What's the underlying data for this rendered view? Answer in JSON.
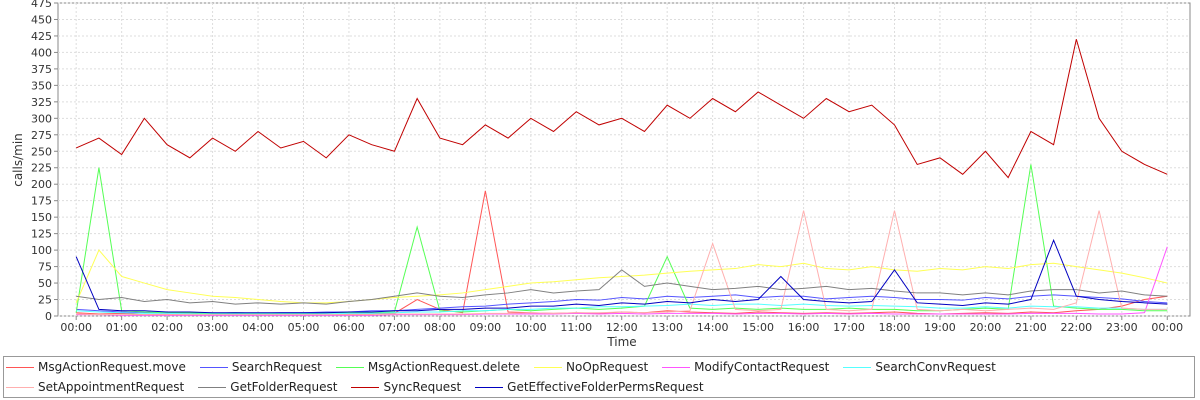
{
  "chart_data": {
    "type": "line",
    "x_label": "Time",
    "y_label": "calls/min",
    "xlim": [
      -0.4,
      24.5
    ],
    "ylim": [
      0,
      475
    ],
    "yticks": [
      0,
      25,
      50,
      75,
      100,
      125,
      150,
      175,
      200,
      225,
      250,
      275,
      300,
      325,
      350,
      375,
      400,
      425,
      450,
      475
    ],
    "xticks": [
      {
        "value": 0,
        "label": "00:00"
      },
      {
        "value": 1,
        "label": "01:00"
      },
      {
        "value": 2,
        "label": "02:00"
      },
      {
        "value": 3,
        "label": "03:00"
      },
      {
        "value": 4,
        "label": "04:00"
      },
      {
        "value": 5,
        "label": "05:00"
      },
      {
        "value": 6,
        "label": "06:00"
      },
      {
        "value": 7,
        "label": "07:00"
      },
      {
        "value": 8,
        "label": "08:00"
      },
      {
        "value": 9,
        "label": "09:00"
      },
      {
        "value": 10,
        "label": "10:00"
      },
      {
        "value": 11,
        "label": "11:00"
      },
      {
        "value": 12,
        "label": "12:00"
      },
      {
        "value": 13,
        "label": "13:00"
      },
      {
        "value": 14,
        "label": "14:00"
      },
      {
        "value": 15,
        "label": "15:00"
      },
      {
        "value": 16,
        "label": "16:00"
      },
      {
        "value": 17,
        "label": "17:00"
      },
      {
        "value": 18,
        "label": "18:00"
      },
      {
        "value": 19,
        "label": "19:00"
      },
      {
        "value": 20,
        "label": "20:00"
      },
      {
        "value": 21,
        "label": "21:00"
      },
      {
        "value": 22,
        "label": "22:00"
      },
      {
        "value": 23,
        "label": "23:00"
      },
      {
        "value": 24,
        "label": "00:00"
      }
    ],
    "grid": true,
    "x": [
      0,
      0.5,
      1,
      1.5,
      2,
      2.5,
      3,
      3.5,
      4,
      4.5,
      5,
      5.5,
      6,
      6.5,
      7,
      7.5,
      8,
      8.5,
      9,
      9.5,
      10,
      10.5,
      11,
      11.5,
      12,
      12.5,
      13,
      13.5,
      14,
      14.5,
      15,
      15.5,
      16,
      16.5,
      17,
      17.5,
      18,
      18.5,
      19,
      19.5,
      20,
      20.5,
      21,
      21.5,
      22,
      22.5,
      23,
      23.5,
      24
    ],
    "series": [
      {
        "name": "MsgActionRequest.move",
        "color": "#ff5555",
        "values": [
          5,
          3,
          4,
          2,
          3,
          2,
          3,
          2,
          2,
          2,
          2,
          2,
          3,
          3,
          4,
          25,
          10,
          5,
          190,
          6,
          5,
          4,
          5,
          4,
          6,
          5,
          8,
          6,
          5,
          4,
          6,
          5,
          4,
          5,
          4,
          5,
          6,
          4,
          3,
          4,
          5,
          4,
          6,
          5,
          8,
          10,
          15,
          25,
          30
        ]
      },
      {
        "name": "SearchRequest",
        "color": "#5555ff",
        "values": [
          10,
          8,
          6,
          5,
          5,
          5,
          4,
          5,
          4,
          5,
          5,
          6,
          6,
          8,
          8,
          10,
          12,
          14,
          15,
          18,
          20,
          22,
          25,
          24,
          28,
          26,
          30,
          28,
          30,
          32,
          28,
          30,
          30,
          26,
          28,
          30,
          28,
          25,
          25,
          24,
          28,
          26,
          30,
          32,
          30,
          28,
          26,
          22,
          20
        ]
      },
      {
        "name": "MsgActionRequest.delete",
        "color": "#55ff55",
        "values": [
          5,
          225,
          8,
          6,
          5,
          5,
          4,
          5,
          4,
          4,
          4,
          5,
          5,
          5,
          6,
          135,
          8,
          6,
          8,
          10,
          8,
          10,
          12,
          10,
          12,
          15,
          90,
          12,
          10,
          12,
          10,
          12,
          10,
          10,
          12,
          10,
          10,
          8,
          8,
          10,
          12,
          10,
          230,
          15,
          12,
          10,
          10,
          8,
          8
        ]
      },
      {
        "name": "NoOpRequest",
        "color": "#ffff55",
        "values": [
          20,
          100,
          60,
          50,
          40,
          35,
          30,
          28,
          25,
          22,
          20,
          20,
          22,
          25,
          28,
          30,
          32,
          35,
          40,
          45,
          50,
          52,
          55,
          58,
          60,
          62,
          65,
          68,
          70,
          72,
          78,
          75,
          80,
          72,
          70,
          75,
          70,
          68,
          72,
          70,
          75,
          72,
          78,
          80,
          75,
          70,
          65,
          58,
          50
        ]
      },
      {
        "name": "ModifyContactRequest",
        "color": "#ff55ff",
        "values": [
          2,
          2,
          1,
          1,
          1,
          1,
          1,
          1,
          1,
          1,
          1,
          1,
          1,
          1,
          2,
          2,
          2,
          2,
          3,
          3,
          3,
          3,
          4,
          3,
          4,
          3,
          4,
          4,
          4,
          3,
          4,
          4,
          3,
          4,
          3,
          4,
          3,
          3,
          3,
          3,
          3,
          3,
          4,
          4,
          4,
          3,
          3,
          5,
          105
        ]
      },
      {
        "name": "SearchConvRequest",
        "color": "#55ffff",
        "values": [
          8,
          6,
          5,
          4,
          4,
          3,
          3,
          3,
          3,
          3,
          3,
          3,
          4,
          4,
          5,
          6,
          6,
          8,
          8,
          10,
          10,
          12,
          12,
          14,
          14,
          15,
          16,
          18,
          16,
          18,
          18,
          16,
          18,
          16,
          15,
          16,
          15,
          14,
          12,
          12,
          14,
          12,
          15,
          14,
          14,
          12,
          12,
          10,
          10
        ]
      },
      {
        "name": "SetAppointmentRequest",
        "color": "#ffafaf",
        "values": [
          3,
          2,
          2,
          2,
          2,
          2,
          2,
          2,
          2,
          2,
          2,
          2,
          2,
          2,
          3,
          3,
          3,
          3,
          4,
          4,
          5,
          4,
          5,
          5,
          6,
          5,
          6,
          8,
          110,
          10,
          8,
          10,
          160,
          10,
          8,
          10,
          160,
          10,
          8,
          10,
          8,
          10,
          12,
          10,
          20,
          160,
          12,
          10,
          10
        ]
      },
      {
        "name": "GetFolderRequest",
        "color": "#808080",
        "values": [
          30,
          25,
          28,
          22,
          25,
          20,
          22,
          18,
          20,
          18,
          20,
          18,
          22,
          25,
          30,
          35,
          30,
          28,
          32,
          35,
          40,
          35,
          38,
          40,
          70,
          45,
          50,
          45,
          40,
          42,
          45,
          40,
          42,
          45,
          40,
          42,
          38,
          35,
          35,
          32,
          35,
          32,
          38,
          40,
          40,
          35,
          38,
          32,
          30
        ]
      },
      {
        "name": "SyncRequest",
        "color": "#c00000",
        "values": [
          255,
          270,
          245,
          300,
          260,
          240,
          270,
          250,
          280,
          255,
          265,
          240,
          275,
          260,
          250,
          330,
          270,
          260,
          290,
          270,
          300,
          280,
          310,
          290,
          300,
          280,
          320,
          300,
          330,
          310,
          340,
          320,
          300,
          330,
          310,
          320,
          290,
          230,
          240,
          215,
          250,
          210,
          280,
          260,
          420,
          300,
          250,
          230,
          215
        ]
      },
      {
        "name": "GetEffectiveFolderPermsRequest",
        "color": "#0000c0",
        "values": [
          90,
          10,
          8,
          8,
          6,
          6,
          5,
          5,
          5,
          5,
          5,
          5,
          6,
          6,
          8,
          8,
          10,
          10,
          12,
          12,
          15,
          15,
          18,
          16,
          20,
          18,
          22,
          20,
          25,
          22,
          25,
          60,
          25,
          22,
          20,
          22,
          70,
          20,
          18,
          16,
          20,
          18,
          25,
          115,
          30,
          25,
          22,
          20,
          18
        ]
      }
    ]
  }
}
